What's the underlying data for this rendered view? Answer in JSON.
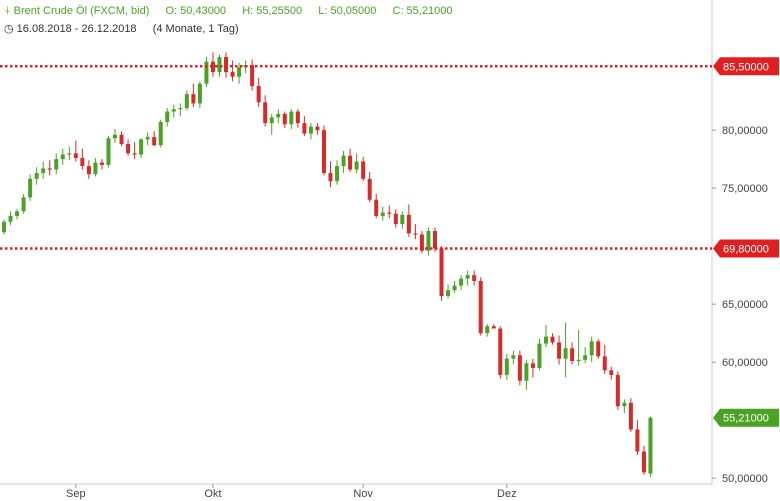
{
  "header": {
    "instrument": "Brent Crude Öl (FXCM, bid)",
    "open": "O: 50,43000",
    "high": "H: 55,25500",
    "low": "L: 50,05000",
    "close": "C: 55,21000",
    "date_range": "16.08.2018 - 26.12.2018",
    "period": "(4 Monate, 1 Tag)"
  },
  "colors": {
    "up": "#4aa324",
    "down": "#d62b2b",
    "level": "#e02020",
    "grid": "#eeeeee",
    "axis": "#cccccc"
  },
  "chart_data": {
    "type": "candlestick",
    "ylim": [
      49.5,
      88.8
    ],
    "yticks": [
      {
        "value": 50,
        "label": "50,00000"
      },
      {
        "value": 60,
        "label": "60,00000"
      },
      {
        "value": 65,
        "label": "65,00000"
      },
      {
        "value": 75,
        "label": "75,00000"
      },
      {
        "value": 80,
        "label": "80,00000"
      }
    ],
    "xticks": [
      {
        "index": 11,
        "label": "Sep"
      },
      {
        "index": 32,
        "label": "Okt"
      },
      {
        "index": 55,
        "label": "Nov"
      },
      {
        "index": 77,
        "label": "Dez"
      }
    ],
    "levels": [
      {
        "value": 85.5,
        "label": "85,50000"
      },
      {
        "value": 69.8,
        "label": "69,80000"
      }
    ],
    "last_price": {
      "value": 55.21,
      "label": "55,21000"
    },
    "candles": [
      [
        71.2,
        72.3,
        71.0,
        72.1
      ],
      [
        72.1,
        73.0,
        71.8,
        72.6
      ],
      [
        72.6,
        73.2,
        72.3,
        73.0
      ],
      [
        73.0,
        74.5,
        72.8,
        74.2
      ],
      [
        74.2,
        76.2,
        73.9,
        75.8
      ],
      [
        75.8,
        76.8,
        75.3,
        76.3
      ],
      [
        76.3,
        77.3,
        75.8,
        76.7
      ],
      [
        76.7,
        77.4,
        76.1,
        76.6
      ],
      [
        76.6,
        78.0,
        76.2,
        77.5
      ],
      [
        77.5,
        78.4,
        77.0,
        77.9
      ],
      [
        77.9,
        78.6,
        77.4,
        78.0
      ],
      [
        78.0,
        79.1,
        77.3,
        77.6
      ],
      [
        77.6,
        78.4,
        76.6,
        76.9
      ],
      [
        76.9,
        77.4,
        75.8,
        76.2
      ],
      [
        76.2,
        77.6,
        76.0,
        77.2
      ],
      [
        77.2,
        77.5,
        76.6,
        77.0
      ],
      [
        77.0,
        79.5,
        76.8,
        79.3
      ],
      [
        79.3,
        80.1,
        78.9,
        79.6
      ],
      [
        79.6,
        79.9,
        78.6,
        78.8
      ],
      [
        78.8,
        79.2,
        77.8,
        78.0
      ],
      [
        78.0,
        79.0,
        77.5,
        77.9
      ],
      [
        77.9,
        79.3,
        77.6,
        79.2
      ],
      [
        79.2,
        79.8,
        78.7,
        79.4
      ],
      [
        79.4,
        79.9,
        78.6,
        78.7
      ],
      [
        78.7,
        80.9,
        78.5,
        80.7
      ],
      [
        80.7,
        81.9,
        80.3,
        81.6
      ],
      [
        81.6,
        82.2,
        81.1,
        81.8
      ],
      [
        81.8,
        82.3,
        81.2,
        81.9
      ],
      [
        81.9,
        83.4,
        81.7,
        83.1
      ],
      [
        83.1,
        84.0,
        82.0,
        82.3
      ],
      [
        82.3,
        84.2,
        81.9,
        84.0
      ],
      [
        84.0,
        86.3,
        83.7,
        85.9
      ],
      [
        85.9,
        86.7,
        84.6,
        85.0
      ],
      [
        85.0,
        86.5,
        84.6,
        86.3
      ],
      [
        86.3,
        86.7,
        84.5,
        85.0
      ],
      [
        85.0,
        86.0,
        84.2,
        84.6
      ],
      [
        84.6,
        85.8,
        84.0,
        85.4
      ],
      [
        85.4,
        86.0,
        84.9,
        85.6
      ],
      [
        85.6,
        86.1,
        83.4,
        83.8
      ],
      [
        83.8,
        84.5,
        82.0,
        82.4
      ],
      [
        82.4,
        83.0,
        80.3,
        80.6
      ],
      [
        80.6,
        81.4,
        79.6,
        81.1
      ],
      [
        81.1,
        81.8,
        80.6,
        81.4
      ],
      [
        81.4,
        81.6,
        80.2,
        80.5
      ],
      [
        80.5,
        81.8,
        80.1,
        81.6
      ],
      [
        81.6,
        81.8,
        80.2,
        80.6
      ],
      [
        80.6,
        81.2,
        79.5,
        79.7
      ],
      [
        79.7,
        80.6,
        79.2,
        80.3
      ],
      [
        80.3,
        80.6,
        79.6,
        80.0
      ],
      [
        80.0,
        80.4,
        76.1,
        76.3
      ],
      [
        76.3,
        77.3,
        75.1,
        75.6
      ],
      [
        75.6,
        77.4,
        75.3,
        76.9
      ],
      [
        76.9,
        78.2,
        76.3,
        77.8
      ],
      [
        77.8,
        78.4,
        76.4,
        76.6
      ],
      [
        76.6,
        78.0,
        76.3,
        77.3
      ],
      [
        77.3,
        77.7,
        75.6,
        75.8
      ],
      [
        75.8,
        76.4,
        73.8,
        74.0
      ],
      [
        74.0,
        74.5,
        72.4,
        72.6
      ],
      [
        72.6,
        73.4,
        72.2,
        72.9
      ],
      [
        72.9,
        73.5,
        72.4,
        72.8
      ],
      [
        72.8,
        73.2,
        71.6,
        71.9
      ],
      [
        71.9,
        73.0,
        71.5,
        72.7
      ],
      [
        72.7,
        73.6,
        70.8,
        71.1
      ],
      [
        71.1,
        71.9,
        70.6,
        71.0
      ],
      [
        71.0,
        71.3,
        69.4,
        69.6
      ],
      [
        69.6,
        71.6,
        69.2,
        71.3
      ],
      [
        71.3,
        71.6,
        69.5,
        69.8
      ],
      [
        69.8,
        70.0,
        65.3,
        65.7
      ],
      [
        65.7,
        66.7,
        65.5,
        66.2
      ],
      [
        66.2,
        67.0,
        66.0,
        66.6
      ],
      [
        66.6,
        67.5,
        66.2,
        67.2
      ],
      [
        67.2,
        67.9,
        66.6,
        67.5
      ],
      [
        67.5,
        67.9,
        66.6,
        67.0
      ],
      [
        67.0,
        67.3,
        62.3,
        62.5
      ],
      [
        62.5,
        63.3,
        62.2,
        63.1
      ],
      [
        63.1,
        63.3,
        62.9,
        62.9
      ],
      [
        62.9,
        63.1,
        58.6,
        58.9
      ],
      [
        58.9,
        60.7,
        58.5,
        60.3
      ],
      [
        60.3,
        61.0,
        59.8,
        60.6
      ],
      [
        60.6,
        61.0,
        58.0,
        58.4
      ],
      [
        58.4,
        60.2,
        57.6,
        59.9
      ],
      [
        59.9,
        60.3,
        58.7,
        59.5
      ],
      [
        59.5,
        62.0,
        59.3,
        61.6
      ],
      [
        61.6,
        63.2,
        61.3,
        62.2
      ],
      [
        62.2,
        62.5,
        61.5,
        61.7
      ],
      [
        61.7,
        62.3,
        59.8,
        60.3
      ],
      [
        60.3,
        63.4,
        58.7,
        61.2
      ],
      [
        61.2,
        61.7,
        59.8,
        60.1
      ],
      [
        60.1,
        62.8,
        59.7,
        60.2
      ],
      [
        60.2,
        61.3,
        59.9,
        60.6
      ],
      [
        60.6,
        62.2,
        60.0,
        61.8
      ],
      [
        61.8,
        62.0,
        60.3,
        60.5
      ],
      [
        60.5,
        61.5,
        59.0,
        59.3
      ],
      [
        59.3,
        59.6,
        58.5,
        58.9
      ],
      [
        58.9,
        59.2,
        55.9,
        56.2
      ],
      [
        56.2,
        56.8,
        55.6,
        56.5
      ],
      [
        56.5,
        56.9,
        54.0,
        54.2
      ],
      [
        54.2,
        55.0,
        52.0,
        52.3
      ],
      [
        52.3,
        52.8,
        50.3,
        50.5
      ],
      [
        50.4,
        55.3,
        50.1,
        55.2
      ]
    ]
  }
}
